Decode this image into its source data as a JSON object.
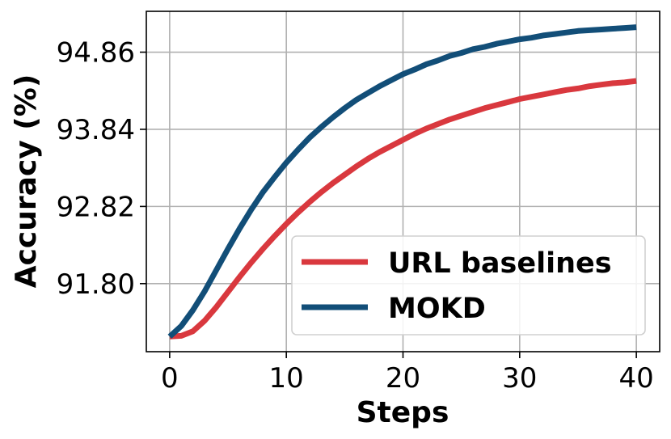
{
  "chart_data": {
    "type": "line",
    "xlabel": "Steps",
    "ylabel": "Accuracy (%)",
    "xlim": [
      -2,
      42
    ],
    "ylim": [
      90.9,
      95.4
    ],
    "xticks": [
      0,
      10,
      20,
      30,
      40
    ],
    "xtick_labels": [
      "0",
      "10",
      "20",
      "30",
      "40"
    ],
    "yticks": [
      91.8,
      92.82,
      93.84,
      94.86
    ],
    "ytick_labels": [
      "91.80",
      "92.82",
      "93.84",
      "94.86"
    ],
    "grid": true,
    "legend_position": "lower-right",
    "x": [
      0,
      1,
      2,
      3,
      4,
      5,
      6,
      7,
      8,
      9,
      10,
      11,
      12,
      13,
      14,
      15,
      16,
      17,
      18,
      19,
      20,
      21,
      22,
      23,
      24,
      25,
      26,
      27,
      28,
      29,
      30,
      31,
      32,
      33,
      34,
      35,
      36,
      37,
      38,
      39,
      40
    ],
    "series": [
      {
        "name": "URL baselines",
        "color": "#d9383e",
        "values": [
          91.1,
          91.11,
          91.17,
          91.31,
          91.49,
          91.69,
          91.89,
          92.08,
          92.26,
          92.43,
          92.59,
          92.74,
          92.88,
          93.01,
          93.13,
          93.24,
          93.35,
          93.45,
          93.54,
          93.62,
          93.7,
          93.78,
          93.85,
          93.91,
          93.97,
          94.02,
          94.07,
          94.12,
          94.16,
          94.2,
          94.24,
          94.27,
          94.3,
          94.33,
          94.36,
          94.38,
          94.41,
          94.43,
          94.45,
          94.46,
          94.48
        ]
      },
      {
        "name": "MOKD",
        "color": "#124e78",
        "values": [
          91.1,
          91.24,
          91.45,
          91.7,
          91.98,
          92.26,
          92.53,
          92.78,
          93.01,
          93.21,
          93.4,
          93.57,
          93.73,
          93.87,
          94.0,
          94.12,
          94.23,
          94.32,
          94.41,
          94.49,
          94.57,
          94.63,
          94.7,
          94.75,
          94.81,
          94.85,
          94.9,
          94.93,
          94.97,
          95.0,
          95.03,
          95.05,
          95.08,
          95.1,
          95.12,
          95.14,
          95.15,
          95.16,
          95.17,
          95.18,
          95.19
        ]
      }
    ]
  }
}
